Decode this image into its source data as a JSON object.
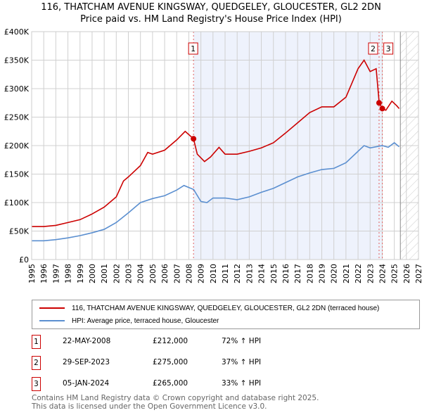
{
  "title_line1": "116, THATCHAM AVENUE KINGSWAY, QUEDGELEY, GLOUCESTER, GL2 2DN",
  "title_line2": "Price paid vs. HM Land Registry's House Price Index (HPI)",
  "chart_data": {
    "type": "line",
    "xlim": [
      1995,
      2027
    ],
    "ylim": [
      0,
      400000
    ],
    "x_ticks": [
      "1995",
      "1996",
      "1997",
      "1998",
      "1999",
      "2000",
      "2001",
      "2002",
      "2003",
      "2004",
      "2005",
      "2006",
      "2007",
      "2008",
      "2009",
      "2010",
      "2011",
      "2012",
      "2013",
      "2014",
      "2015",
      "2016",
      "2017",
      "2018",
      "2019",
      "2020",
      "2021",
      "2022",
      "2023",
      "2024",
      "2025",
      "2026",
      "2027"
    ],
    "y_ticks": [
      {
        "v": 0,
        "label": "£0"
      },
      {
        "v": 50000,
        "label": "£50K"
      },
      {
        "v": 100000,
        "label": "£100K"
      },
      {
        "v": 150000,
        "label": "£150K"
      },
      {
        "v": 200000,
        "label": "£200K"
      },
      {
        "v": 250000,
        "label": "£250K"
      },
      {
        "v": 300000,
        "label": "£300K"
      },
      {
        "v": 350000,
        "label": "£350K"
      },
      {
        "v": 400000,
        "label": "£400K"
      }
    ],
    "future_from": 2025.5,
    "series": [
      {
        "name": "116, THATCHAM AVENUE KINGSWAY, QUEDGELEY, GLOUCESTER, GL2 2DN (terraced house)",
        "color": "#cc0000",
        "points": [
          [
            1995,
            58000
          ],
          [
            1996,
            58000
          ],
          [
            1997,
            60000
          ],
          [
            1998,
            65000
          ],
          [
            1999,
            70000
          ],
          [
            2000,
            80000
          ],
          [
            2001,
            92000
          ],
          [
            2002,
            110000
          ],
          [
            2002.6,
            138000
          ],
          [
            2003,
            145000
          ],
          [
            2004,
            165000
          ],
          [
            2004.6,
            188000
          ],
          [
            2005,
            185000
          ],
          [
            2006,
            192000
          ],
          [
            2007,
            210000
          ],
          [
            2007.7,
            225000
          ],
          [
            2008.39,
            212000
          ],
          [
            2008.7,
            185000
          ],
          [
            2009.3,
            172000
          ],
          [
            2009.8,
            180000
          ],
          [
            2010.5,
            197000
          ],
          [
            2011,
            185000
          ],
          [
            2012,
            185000
          ],
          [
            2013,
            190000
          ],
          [
            2014,
            196000
          ],
          [
            2015,
            205000
          ],
          [
            2016,
            222000
          ],
          [
            2017,
            240000
          ],
          [
            2018,
            258000
          ],
          [
            2019,
            268000
          ],
          [
            2020,
            268000
          ],
          [
            2021,
            285000
          ],
          [
            2021.5,
            310000
          ],
          [
            2022,
            335000
          ],
          [
            2022.5,
            350000
          ],
          [
            2023,
            330000
          ],
          [
            2023.5,
            335000
          ],
          [
            2023.75,
            275000
          ],
          [
            2024.01,
            265000
          ],
          [
            2024.3,
            262000
          ],
          [
            2024.8,
            278000
          ],
          [
            2025.2,
            270000
          ],
          [
            2025.4,
            265000
          ]
        ]
      },
      {
        "name": "HPI: Average price, terraced house, Gloucester",
        "color": "#5b8fd0",
        "points": [
          [
            1995,
            33000
          ],
          [
            1996,
            33000
          ],
          [
            1997,
            35000
          ],
          [
            1998,
            38000
          ],
          [
            1999,
            42000
          ],
          [
            2000,
            47000
          ],
          [
            2001,
            53000
          ],
          [
            2002,
            65000
          ],
          [
            2003,
            82000
          ],
          [
            2004,
            100000
          ],
          [
            2005,
            107000
          ],
          [
            2006,
            112000
          ],
          [
            2007,
            122000
          ],
          [
            2007.6,
            130000
          ],
          [
            2008.4,
            123000
          ],
          [
            2009,
            102000
          ],
          [
            2009.5,
            100000
          ],
          [
            2010,
            108000
          ],
          [
            2011,
            108000
          ],
          [
            2012,
            105000
          ],
          [
            2013,
            110000
          ],
          [
            2014,
            118000
          ],
          [
            2015,
            125000
          ],
          [
            2016,
            135000
          ],
          [
            2017,
            145000
          ],
          [
            2018,
            152000
          ],
          [
            2019,
            158000
          ],
          [
            2020,
            160000
          ],
          [
            2021,
            170000
          ],
          [
            2022,
            190000
          ],
          [
            2022.5,
            200000
          ],
          [
            2023,
            196000
          ],
          [
            2024,
            200000
          ],
          [
            2024.5,
            197000
          ],
          [
            2025,
            205000
          ],
          [
            2025.4,
            198000
          ]
        ]
      }
    ],
    "sales": [
      {
        "id": "1",
        "x": 2008.39,
        "y": 212000,
        "date": "22-MAY-2008",
        "price": "£212,000",
        "hpi": "72% ↑ HPI"
      },
      {
        "id": "2",
        "x": 2023.74,
        "y": 275000,
        "date": "29-SEP-2023",
        "price": "£275,000",
        "hpi": "37% ↑ HPI"
      },
      {
        "id": "3",
        "x": 2024.01,
        "y": 265000,
        "date": "05-JAN-2024",
        "price": "£265,000",
        "hpi": "33% ↑ HPI"
      }
    ]
  },
  "footer_line1": "Contains HM Land Registry data © Crown copyright and database right 2025.",
  "footer_line2": "This data is licensed under the Open Government Licence v3.0."
}
